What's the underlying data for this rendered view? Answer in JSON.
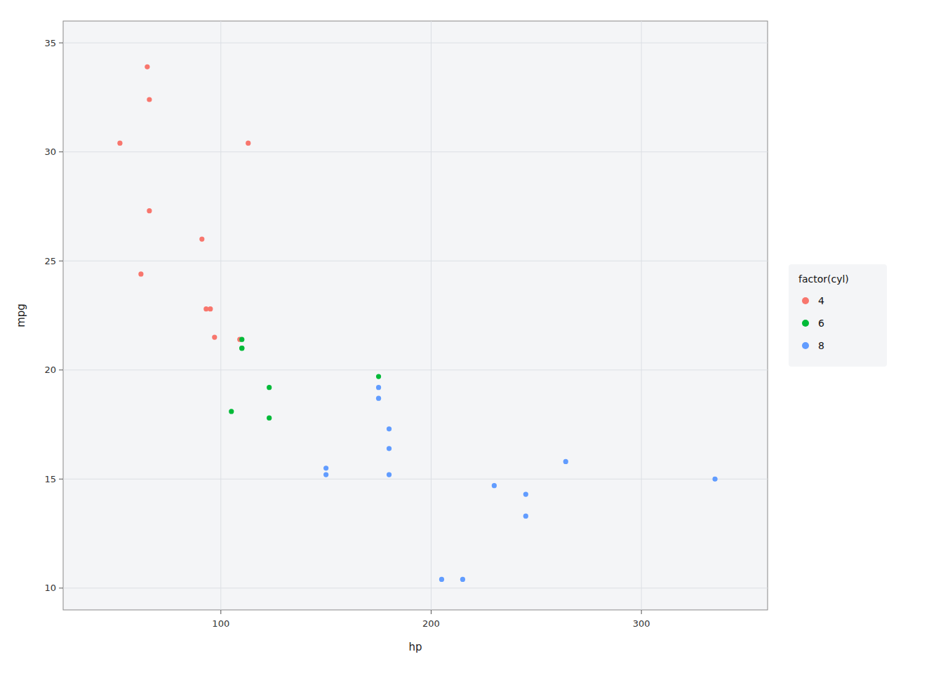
{
  "chart_data": {
    "type": "scatter",
    "xlabel": "hp",
    "ylabel": "mpg",
    "legend_title": "factor(cyl)",
    "xlim": [
      25,
      360
    ],
    "ylim": [
      9.0,
      36.0
    ],
    "xticks": [
      100,
      200,
      300
    ],
    "yticks": [
      10,
      15,
      20,
      25,
      30,
      35
    ],
    "grid": true,
    "legend": "right",
    "series": [
      {
        "name": "4",
        "color": "#F8766D",
        "x": [
          93,
          62,
          95,
          66,
          52,
          65,
          97,
          66,
          91,
          113,
          109
        ],
        "values": [
          22.8,
          24.4,
          22.8,
          32.4,
          30.4,
          33.9,
          21.5,
          27.3,
          26.0,
          30.4,
          21.4
        ]
      },
      {
        "name": "6",
        "color": "#00BA38",
        "x": [
          110,
          110,
          110,
          105,
          123,
          123,
          175
        ],
        "values": [
          21.0,
          21.0,
          21.4,
          18.1,
          19.2,
          17.8,
          19.7
        ]
      },
      {
        "name": "8",
        "color": "#619CFF",
        "x": [
          175,
          245,
          180,
          180,
          180,
          205,
          215,
          230,
          150,
          150,
          245,
          175,
          264,
          335
        ],
        "values": [
          18.7,
          14.3,
          16.4,
          17.3,
          15.2,
          10.4,
          10.4,
          14.7,
          15.5,
          15.2,
          13.3,
          19.2,
          15.8,
          15.0
        ]
      }
    ]
  }
}
